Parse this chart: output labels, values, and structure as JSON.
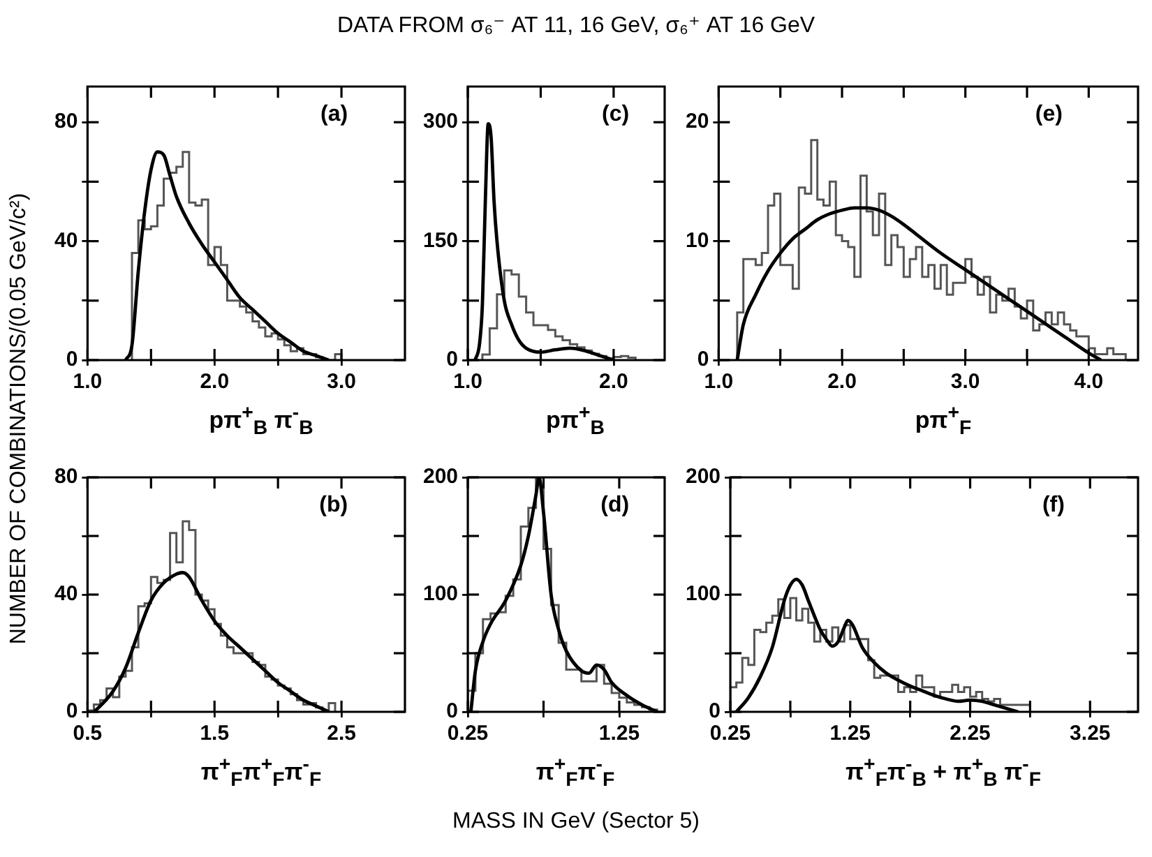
{
  "chart_data": [
    {
      "type": "other",
      "title": "DATA FROM σ₆⁻ AT 11, 16 GeV, σ₆⁺ AT 16 GeV",
      "ylabel": "NUMBER OF COMBINATIONS/(0.05 GeV/c²)",
      "xlabel": "MASS IN GeV (Sector 5)"
    },
    {
      "type": "histogram",
      "xlabel": "pπ$^{+}$$_{B}$ π$^{-}$$_{B}$",
      "annotations": [
        "(a)"
      ],
      "xlim": [
        1.0,
        3.5
      ],
      "xticks": [
        {
          "value": 1,
          "label": "1.0"
        },
        {
          "value": 1.5,
          "label": null
        },
        {
          "value": 2,
          "label": "2.0"
        },
        {
          "value": 2.5,
          "label": null
        },
        {
          "value": 3,
          "label": "3.0"
        }
      ],
      "ylim": [
        0,
        92
      ],
      "yticks": [
        0,
        {
          "value": 20,
          "label": null
        },
        40,
        {
          "value": 60,
          "label": null
        },
        80
      ],
      "series": [
        {
          "type": "histogram",
          "color": "#555555",
          "bins": [
            1.35,
            1.4,
            1.45,
            1.5,
            1.55,
            1.6,
            1.65,
            1.7,
            1.75,
            1.8,
            1.85,
            1.9,
            1.95,
            2,
            2.05,
            2.1,
            2.15,
            2.2,
            2.25,
            2.3,
            2.35,
            2.4,
            2.45,
            2.5,
            2.55,
            2.6,
            2.65,
            2.7,
            2.75,
            2.8,
            2.85,
            2.9,
            2.95,
            3
          ],
          "values": [
            36,
            47,
            44,
            45,
            52,
            61,
            63,
            65,
            70,
            53,
            52,
            54,
            32,
            38,
            32,
            20,
            20,
            18,
            16,
            13,
            11,
            8,
            9,
            7,
            5,
            3,
            4,
            2,
            2,
            1,
            0,
            0,
            2
          ]
        },
        {
          "type": "line",
          "color": "#000000",
          "x": [
            1.3,
            1.35,
            1.4,
            1.45,
            1.5,
            1.55,
            1.6,
            1.65,
            1.7,
            1.8,
            1.9,
            2.0,
            2.1,
            2.2,
            2.3,
            2.4,
            2.5,
            2.6,
            2.7,
            2.8,
            2.9
          ],
          "values": [
            0,
            5,
            30,
            50,
            64,
            70,
            69,
            62,
            55,
            46,
            39,
            33,
            27,
            21,
            17,
            13,
            9,
            6,
            3,
            1.5,
            0
          ]
        }
      ]
    },
    {
      "type": "histogram",
      "xlabel": "pπ$^{+}$$_{B}$",
      "annotations": [
        "(c)"
      ],
      "xlim": [
        1.0,
        2.35
      ],
      "xticks": [
        {
          "value": 1,
          "label": "1.0"
        },
        {
          "value": 1.5,
          "label": null
        },
        {
          "value": 2,
          "label": "2.0"
        }
      ],
      "ylim": [
        0,
        345
      ],
      "yticks": [
        0,
        {
          "value": 75,
          "label": null
        },
        150,
        {
          "value": 225,
          "label": null
        },
        300
      ],
      "series": [
        {
          "type": "histogram",
          "color": "#555555",
          "bins": [
            1.1,
            1.15,
            1.2,
            1.25,
            1.3,
            1.35,
            1.4,
            1.45,
            1.5,
            1.55,
            1.6,
            1.65,
            1.7,
            1.75,
            1.8,
            1.85,
            1.9,
            1.95,
            2,
            2.05,
            2.1,
            2.15
          ],
          "values": [
            7,
            40,
            83,
            113,
            108,
            80,
            60,
            44,
            44,
            38,
            30,
            25,
            20,
            16,
            12,
            8,
            5,
            2,
            4,
            5,
            3
          ]
        },
        {
          "type": "line",
          "color": "#000000",
          "x": [
            1.05,
            1.08,
            1.1,
            1.12,
            1.14,
            1.16,
            1.18,
            1.2,
            1.25,
            1.3,
            1.35,
            1.4,
            1.5,
            1.6,
            1.7,
            1.8,
            1.9,
            2.0
          ],
          "values": [
            0,
            20,
            70,
            200,
            298,
            280,
            200,
            150,
            75,
            45,
            25,
            15,
            10,
            13,
            15,
            12,
            6,
            0
          ]
        }
      ]
    },
    {
      "type": "histogram",
      "xlabel": "pπ$^{+}$$_{F}$",
      "annotations": [
        "(e)"
      ],
      "xlim": [
        1.0,
        4.4
      ],
      "xticks": [
        {
          "value": 1,
          "label": "1.0"
        },
        {
          "value": 1.5,
          "label": null
        },
        {
          "value": 2,
          "label": "2.0"
        },
        {
          "value": 2.5,
          "label": null
        },
        {
          "value": 3,
          "label": "3.0"
        },
        {
          "value": 3.5,
          "label": null
        },
        {
          "value": 4,
          "label": "4.0"
        }
      ],
      "ylim": [
        0,
        23
      ],
      "yticks": [
        0,
        {
          "value": 5,
          "label": null
        },
        10,
        {
          "value": 15,
          "label": null
        },
        20
      ],
      "series": [
        {
          "type": "histogram",
          "color": "#555555",
          "bins": [
            1.15,
            1.2,
            1.25,
            1.3,
            1.35,
            1.4,
            1.45,
            1.5,
            1.55,
            1.6,
            1.65,
            1.7,
            1.75,
            1.8,
            1.85,
            1.9,
            1.95,
            2,
            2.05,
            2.1,
            2.15,
            2.2,
            2.25,
            2.3,
            2.35,
            2.4,
            2.45,
            2.5,
            2.55,
            2.6,
            2.65,
            2.7,
            2.75,
            2.8,
            2.85,
            2.9,
            2.95,
            3,
            3.05,
            3.1,
            3.15,
            3.2,
            3.25,
            3.3,
            3.35,
            3.4,
            3.45,
            3.5,
            3.55,
            3.6,
            3.65,
            3.7,
            3.75,
            3.8,
            3.85,
            3.9,
            3.95,
            4,
            4.05,
            4.1,
            4.15,
            4.2,
            4.25,
            4.3
          ],
          "values": [
            4,
            8.5,
            8.5,
            8,
            9,
            13,
            14,
            8,
            8,
            6,
            14.5,
            14,
            18.5,
            13.5,
            13,
            15,
            10.5,
            10,
            9.5,
            7,
            15.5,
            12.5,
            10.5,
            14,
            8,
            10.5,
            9.5,
            7,
            8.5,
            9.5,
            7,
            8,
            6,
            8,
            5.5,
            6.5,
            6.5,
            8.5,
            7,
            5.5,
            7,
            4,
            5.5,
            5,
            6,
            4.5,
            3.5,
            5,
            2.5,
            3,
            4,
            3,
            4,
            3,
            2.5,
            2,
            2,
            1,
            0.5,
            0.5,
            1,
            0.5,
            0.5
          ]
        },
        {
          "type": "line",
          "color": "#000000",
          "x": [
            1.15,
            1.2,
            1.3,
            1.4,
            1.5,
            1.6,
            1.7,
            1.8,
            1.9,
            2.0,
            2.1,
            2.2,
            2.3,
            2.4,
            2.5,
            2.6,
            2.8,
            3.0,
            3.2,
            3.4,
            3.6,
            3.8,
            4.0,
            4.1
          ],
          "values": [
            0,
            3,
            5.5,
            7.5,
            9,
            10.2,
            11,
            11.8,
            12.3,
            12.6,
            12.8,
            12.8,
            12.6,
            12.1,
            11.4,
            10.6,
            9,
            7.6,
            6.2,
            4.8,
            3.4,
            2,
            0.6,
            0
          ]
        }
      ]
    },
    {
      "type": "histogram",
      "xlabel": "π$^{+}$$_{F}$π$^{+}$$_{F}$π$^{-}$$_{F}$",
      "annotations": [
        "(b)"
      ],
      "xlim": [
        0.5,
        3.0
      ],
      "xticks": [
        0.5,
        {
          "value": 1,
          "label": null
        },
        1.5,
        {
          "value": 2,
          "label": null
        },
        2.5
      ],
      "ylim": [
        0,
        80
      ],
      "yticks": [
        0,
        {
          "value": 20,
          "label": null
        },
        40,
        {
          "value": 60,
          "label": null
        },
        80
      ],
      "series": [
        {
          "type": "histogram",
          "color": "#555555",
          "bins": [
            0.5,
            0.55,
            0.6,
            0.65,
            0.7,
            0.75,
            0.8,
            0.85,
            0.9,
            0.95,
            1,
            1.05,
            1.1,
            1.15,
            1.2,
            1.25,
            1.3,
            1.35,
            1.4,
            1.45,
            1.5,
            1.55,
            1.6,
            1.65,
            1.7,
            1.75,
            1.8,
            1.85,
            1.9,
            1.95,
            2,
            2.05,
            2.1,
            2.15,
            2.2,
            2.25,
            2.3,
            2.35,
            2.4,
            2.45
          ],
          "values": [
            0.5,
            2.5,
            4,
            8,
            5,
            12,
            14,
            22,
            36,
            37,
            46,
            44,
            45,
            61,
            51,
            65,
            62,
            40,
            38,
            35,
            30,
            26,
            22,
            20,
            20,
            20,
            17,
            16,
            12,
            11,
            9,
            8,
            6,
            4,
            2.5,
            3,
            1.5,
            0,
            3
          ]
        },
        {
          "type": "line",
          "color": "#000000",
          "x": [
            0.55,
            0.6,
            0.7,
            0.8,
            0.9,
            1.0,
            1.1,
            1.2,
            1.25,
            1.3,
            1.4,
            1.5,
            1.6,
            1.7,
            1.8,
            1.9,
            2.0,
            2.1,
            2.2,
            2.3,
            2.4
          ],
          "values": [
            0,
            2,
            7,
            15,
            27,
            38,
            44,
            47,
            47.5,
            46,
            38,
            31,
            26,
            22,
            18,
            14,
            10,
            7,
            4,
            2,
            0
          ]
        }
      ]
    },
    {
      "type": "histogram",
      "xlabel": "π$^{+}$$_{F}$π$^{-}$$_{F}$",
      "annotations": [
        "(d)"
      ],
      "xlim": [
        0.25,
        1.55
      ],
      "xticks": [
        0.25,
        {
          "value": 0.75,
          "label": null
        },
        1.25
      ],
      "ylim": [
        0,
        200
      ],
      "yticks": [
        0,
        {
          "value": 50,
          "label": null
        },
        100,
        {
          "value": 150,
          "label": null
        },
        200
      ],
      "series": [
        {
          "type": "histogram",
          "color": "#555555",
          "bins": [
            0.25,
            0.3,
            0.35,
            0.4,
            0.45,
            0.5,
            0.55,
            0.6,
            0.65,
            0.7,
            0.75,
            0.8,
            0.85,
            0.9,
            0.95,
            1,
            1.05,
            1.1,
            1.15,
            1.2,
            1.25,
            1.3,
            1.35,
            1.4,
            1.45,
            1.5
          ],
          "values": [
            18,
            50,
            79,
            84,
            85,
            99,
            113,
            158,
            174,
            200,
            139,
            91,
            59,
            36,
            36,
            26,
            26,
            40,
            24,
            16,
            12,
            8,
            6,
            4,
            2
          ]
        },
        {
          "type": "line",
          "color": "#000000",
          "x": [
            0.27,
            0.3,
            0.35,
            0.4,
            0.5,
            0.6,
            0.65,
            0.7,
            0.72,
            0.75,
            0.8,
            0.85,
            0.9,
            1.0,
            1.05,
            1.1,
            1.15,
            1.2,
            1.3,
            1.4,
            1.5
          ],
          "values": [
            0,
            35,
            60,
            75,
            95,
            125,
            150,
            185,
            200,
            170,
            100,
            70,
            52,
            35,
            33,
            40,
            36,
            25,
            14,
            6,
            0
          ]
        }
      ]
    },
    {
      "type": "histogram",
      "xlabel": "π$^{+}$$_{F}$π$^{-}$$_{B}$ + π$^{+}$$_{B}$ π$^{-}$$_{F}$",
      "annotations": [
        "(f)"
      ],
      "xlim": [
        0.25,
        3.65
      ],
      "xticks": [
        0.25,
        {
          "value": 0.75,
          "label": null
        },
        1.25,
        {
          "value": 1.75,
          "label": null
        },
        2.25,
        {
          "value": 2.75,
          "label": null
        },
        3.25
      ],
      "ylim": [
        0,
        200
      ],
      "yticks": [
        0,
        {
          "value": 50,
          "label": null
        },
        100,
        {
          "value": 150,
          "label": null
        },
        200
      ],
      "series": [
        {
          "type": "histogram",
          "color": "#555555",
          "bins": [
            0.25,
            0.3,
            0.35,
            0.4,
            0.45,
            0.5,
            0.55,
            0.6,
            0.65,
            0.7,
            0.75,
            0.8,
            0.85,
            0.9,
            0.95,
            1,
            1.05,
            1.1,
            1.15,
            1.2,
            1.25,
            1.3,
            1.35,
            1.4,
            1.45,
            1.5,
            1.55,
            1.6,
            1.65,
            1.7,
            1.75,
            1.8,
            1.85,
            1.9,
            1.95,
            2,
            2.05,
            2.1,
            2.15,
            2.2,
            2.25,
            2.3,
            2.35,
            2.4,
            2.45,
            2.5,
            2.55,
            2.6,
            2.65,
            2.7,
            2.75
          ],
          "values": [
            21,
            25,
            46,
            40,
            70,
            68,
            76,
            82,
            96,
            80,
            97,
            78,
            88,
            76,
            60,
            70,
            60,
            72,
            60,
            74,
            62,
            62,
            62,
            44,
            29,
            31,
            31,
            31,
            17,
            21,
            17,
            31,
            21,
            21,
            13,
            17,
            17,
            23,
            17,
            21,
            13,
            17,
            11,
            9,
            11,
            6,
            6,
            6,
            6,
            6
          ]
        },
        {
          "type": "line",
          "color": "#000000",
          "x": [
            0.3,
            0.4,
            0.5,
            0.6,
            0.7,
            0.75,
            0.8,
            0.85,
            0.9,
            0.95,
            1.0,
            1.05,
            1.1,
            1.15,
            1.2,
            1.23,
            1.27,
            1.35,
            1.45,
            1.55,
            1.65,
            1.75,
            1.85,
            1.95,
            2.05,
            2.15,
            2.25,
            2.35,
            2.45,
            2.55,
            2.65
          ],
          "values": [
            0,
            12,
            30,
            55,
            95,
            108,
            113,
            108,
            95,
            82,
            70,
            62,
            56,
            60,
            72,
            78,
            74,
            55,
            42,
            33,
            27,
            22,
            18,
            14,
            11,
            9,
            10,
            9,
            6,
            3,
            0
          ]
        }
      ]
    }
  ]
}
